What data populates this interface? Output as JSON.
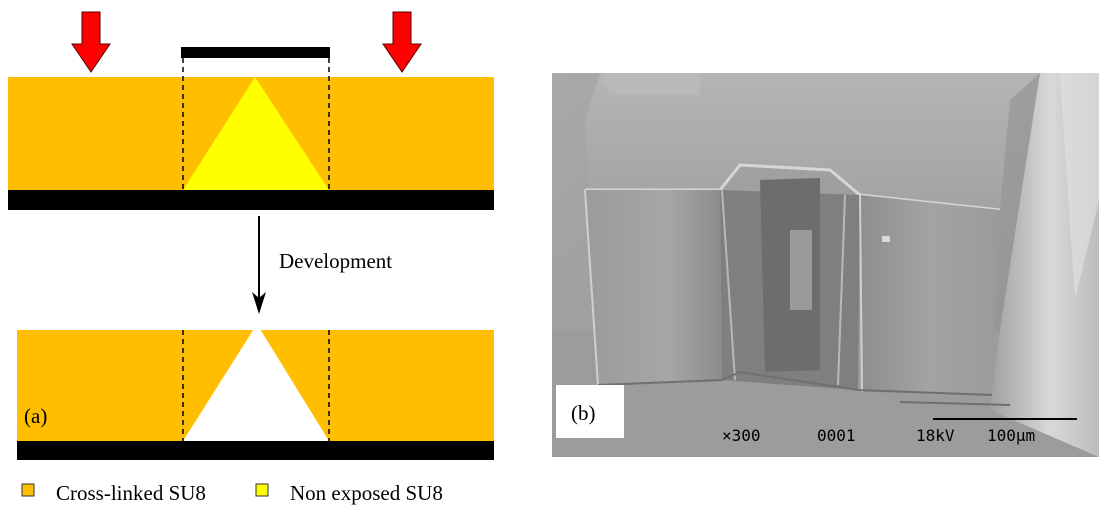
{
  "panel_a": {
    "label": "(a)",
    "arrow_label": "Development"
  },
  "panel_b": {
    "label": "(b)",
    "sem_info": {
      "magnification": "×300",
      "id": "0001",
      "voltage": "18kV",
      "scale": "100μm"
    }
  },
  "legend": [
    {
      "label": "Cross-linked SU8",
      "color": "#FFBF00"
    },
    {
      "label": "Non exposed SU8",
      "color": "#FFFF00"
    }
  ],
  "colors": {
    "crosslinked": "#FFBF00",
    "nonexposed": "#FFFF00",
    "exposure_arrow": "#FF0000",
    "substrate": "#000000"
  }
}
